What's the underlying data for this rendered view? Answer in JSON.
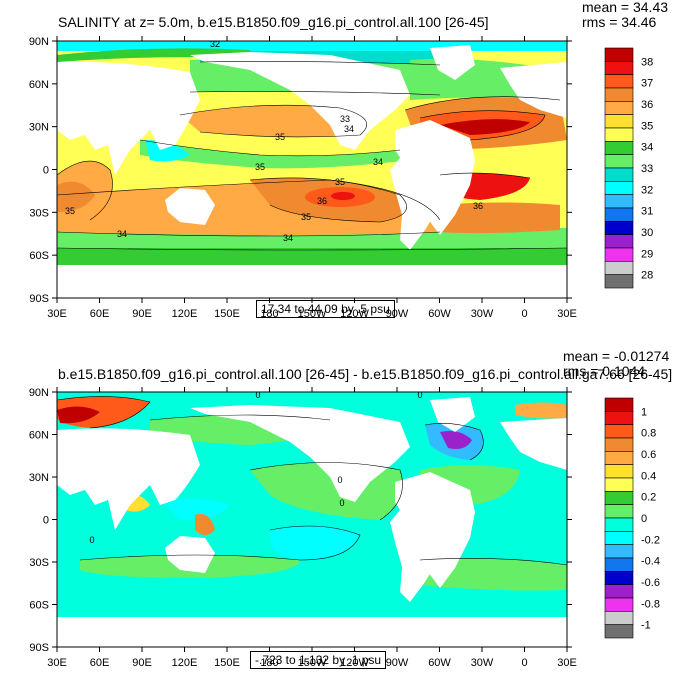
{
  "panels": [
    {
      "title": "SALINITY at z=   5.0m, b.e15.B1850.f09_g16.pi_control.all.100 [26-45]",
      "mean_label": "mean = 34.43",
      "rms_label": "rms = 34.46",
      "range_label": "17.34 to 44.09 by .5 psu",
      "lat_labels": [
        "90N",
        "60N",
        "30N",
        "0",
        "30S",
        "60S",
        "90S"
      ],
      "lon_labels": [
        "30E",
        "60E",
        "90E",
        "120E",
        "150E",
        "180",
        "150W",
        "120W",
        "90W",
        "60W",
        "30W",
        "0",
        "30E"
      ],
      "colorbar": {
        "labels": [
          "38",
          "37",
          "36",
          "35",
          "34",
          "33",
          "32",
          "31",
          "30",
          "29",
          "28"
        ],
        "colors": [
          "#c00000",
          "#ee1111",
          "#ff5a1a",
          "#f08a30",
          "#ffaa44",
          "#ffe030",
          "#ffff55",
          "#33cc33",
          "#66ee66",
          "#00ddcc",
          "#00ffff",
          "#33bbff",
          "#1177ee",
          "#0000cc",
          "#9922cc",
          "#ee33ee",
          "#cccccc",
          "#707070"
        ]
      },
      "contour_labels": [
        "32",
        "33",
        "34",
        "35",
        "35",
        "34",
        "35",
        "36",
        "35",
        "34",
        "36",
        "34",
        "35"
      ]
    },
    {
      "title": "b.e15.B1850.f09_g16.pi_control.all.100 [26-45] - b.e15.B1850.f09_g16.pi_control.all.ga7.66 [26-45]",
      "mean_label": "mean = -0.01274",
      "rms_label": "rms = 0.1044",
      "range_label": "-.723 to 1.132 by .1 psu",
      "lat_labels": [
        "90N",
        "60N",
        "30N",
        "0",
        "30S",
        "60S",
        "90S"
      ],
      "lon_labels": [
        "30E",
        "60E",
        "90E",
        "120E",
        "150E",
        "180",
        "150W",
        "120W",
        "90W",
        "60W",
        "30W",
        "0",
        "30E"
      ],
      "colorbar": {
        "labels": [
          "1",
          "0.8",
          "0.6",
          "0.4",
          "0.2",
          "0",
          "-0.2",
          "-0.4",
          "-0.6",
          "-0.8",
          "-1"
        ],
        "colors": [
          "#c00000",
          "#ee1111",
          "#ff5a1a",
          "#f08a30",
          "#ffaa44",
          "#ffe030",
          "#ffff55",
          "#33cc33",
          "#66ee66",
          "#00ffdd",
          "#00ffff",
          "#33bbff",
          "#1177ee",
          "#0000cc",
          "#9922cc",
          "#ee33ee",
          "#cccccc",
          "#707070"
        ]
      },
      "contour_labels": [
        "0",
        "0",
        "0",
        "0",
        "0"
      ]
    }
  ]
}
